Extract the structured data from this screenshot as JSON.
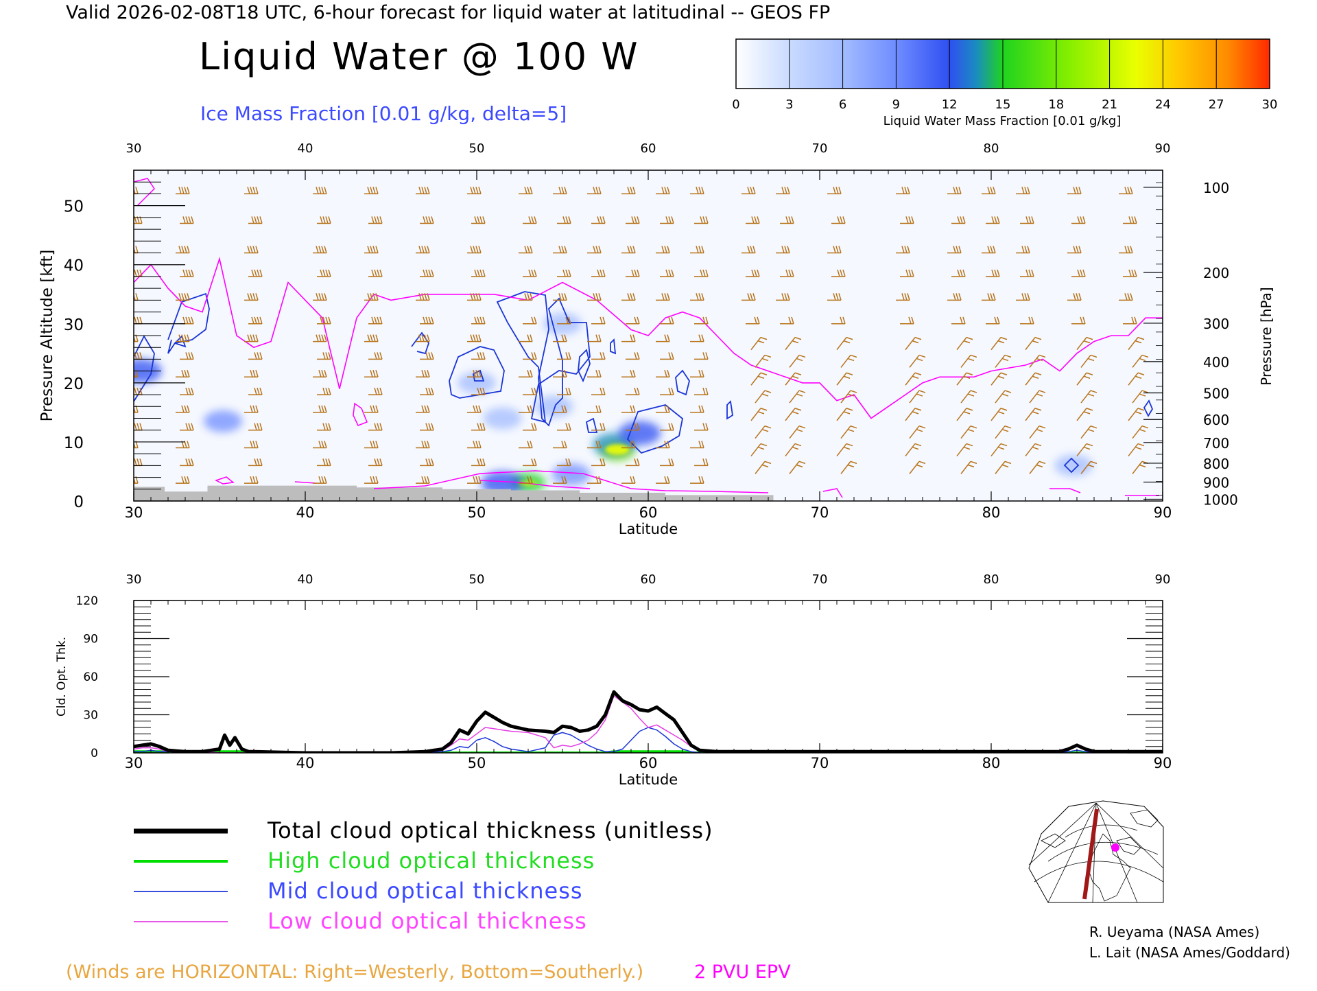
{
  "header": {
    "valid_line": "Valid 2026-02-08T18 UTC, 6-hour forecast for liquid water at latitudinal -- GEOS FP",
    "main_title": "Liquid Water @ 100 W",
    "subtitle": "Ice Mass Fraction [0.01 g/kg, delta=5]"
  },
  "colorbar": {
    "ticks": [
      "0",
      "3",
      "6",
      "9",
      "12",
      "15",
      "18",
      "21",
      "24",
      "27",
      "30"
    ],
    "label": "Liquid Water Mass Fraction [0.01 g/kg]",
    "colors": [
      "#f4f7ff",
      "#c7d8ff",
      "#a0b9ff",
      "#7d98ff",
      "#3f5cff",
      "#1d9ab4",
      "#1fd31f",
      "#90ee00",
      "#f2ff00",
      "#ffc800",
      "#ff8c00",
      "#ff2a00"
    ]
  },
  "colors": {
    "wind_barb": "#b8741a",
    "tropopause_2pvu": "#ff00ff",
    "ice_contour": "#1a34d6",
    "terrain": "#bdbdbd",
    "total": "#000000",
    "high": "#00dd00",
    "mid": "#1a34d6",
    "low": "#e43fe4"
  },
  "chart_data": [
    {
      "type": "heatmap",
      "title": "Liquid Water @ 100 W",
      "xlabel": "Latitude",
      "ylabel": "Pressure Altitude [kft]",
      "ylabel_right": "Pressure [hPa]",
      "xlim": [
        30,
        90
      ],
      "ylim": [
        0,
        56
      ],
      "x_ticks": [
        "30",
        "40",
        "50",
        "60",
        "70",
        "80",
        "90"
      ],
      "y_ticks": [
        "0",
        "10",
        "20",
        "30",
        "40",
        "50"
      ],
      "pressure_ticks": [
        {
          "label": "100",
          "kft": 53.1
        },
        {
          "label": "200",
          "kft": 38.7
        },
        {
          "label": "300",
          "kft": 30.1
        },
        {
          "label": "400",
          "kft": 23.6
        },
        {
          "label": "500",
          "kft": 18.3
        },
        {
          "label": "600",
          "kft": 13.8
        },
        {
          "label": "700",
          "kft": 9.9
        },
        {
          "label": "800",
          "kft": 6.4
        },
        {
          "label": "900",
          "kft": 3.2
        },
        {
          "label": "1000",
          "kft": 0.3
        }
      ],
      "tropopause_2pvu": [
        [
          30,
          37
        ],
        [
          31,
          40
        ],
        [
          32,
          36
        ],
        [
          33,
          33
        ],
        [
          34,
          32
        ],
        [
          35,
          41
        ],
        [
          36,
          28
        ],
        [
          37,
          26
        ],
        [
          38,
          27
        ],
        [
          39,
          37
        ],
        [
          40,
          34
        ],
        [
          41,
          31
        ],
        [
          42,
          19
        ],
        [
          43,
          31
        ],
        [
          44,
          35
        ],
        [
          45,
          34
        ],
        [
          47,
          35
        ],
        [
          49,
          35
        ],
        [
          51,
          35
        ],
        [
          53,
          34
        ],
        [
          55,
          37
        ],
        [
          57,
          34
        ],
        [
          59,
          29
        ],
        [
          60,
          28
        ],
        [
          61,
          31
        ],
        [
          62,
          32
        ],
        [
          63,
          31
        ],
        [
          64,
          28
        ],
        [
          65,
          25
        ],
        [
          66,
          23
        ],
        [
          67,
          22
        ],
        [
          68,
          21
        ],
        [
          69,
          20
        ],
        [
          70,
          20
        ],
        [
          71,
          17
        ],
        [
          72,
          18
        ],
        [
          73,
          14
        ],
        [
          74,
          16
        ],
        [
          75,
          18
        ],
        [
          76,
          20
        ],
        [
          77,
          21
        ],
        [
          78,
          21
        ],
        [
          79,
          21
        ],
        [
          80,
          22
        ],
        [
          82,
          23
        ],
        [
          83,
          24
        ],
        [
          84,
          22
        ],
        [
          85,
          25
        ],
        [
          86,
          27
        ],
        [
          87,
          28
        ],
        [
          88,
          28
        ],
        [
          89,
          31
        ],
        [
          90,
          31
        ]
      ],
      "liquid_water_features": [
        {
          "lat": 58.2,
          "kft": 8.5,
          "value": 18
        },
        {
          "lat": 58.0,
          "kft": 9.5,
          "value": 12
        },
        {
          "lat": 59.5,
          "kft": 11.5,
          "value": 9
        },
        {
          "lat": 53.0,
          "kft": 3.1,
          "value": 15
        },
        {
          "lat": 51.5,
          "kft": 3.0,
          "value": 10
        },
        {
          "lat": 55.5,
          "kft": 4.5,
          "value": 7
        },
        {
          "lat": 35.2,
          "kft": 13.5,
          "value": 7
        },
        {
          "lat": 30.4,
          "kft": 22,
          "value": 9
        },
        {
          "lat": 54.5,
          "kft": 16,
          "value": 4
        },
        {
          "lat": 51.5,
          "kft": 14,
          "value": 3
        },
        {
          "lat": 84.8,
          "kft": 6,
          "value": 3
        },
        {
          "lat": 55.0,
          "kft": 30,
          "value": 3
        },
        {
          "lat": 50.0,
          "kft": 20,
          "value": 3
        }
      ],
      "terrain_kft": [
        [
          30,
          2.4
        ],
        [
          31.8,
          2.4
        ],
        [
          31.8,
          1.6
        ],
        [
          34.3,
          1.6
        ],
        [
          34.3,
          2.6
        ],
        [
          43,
          2.6
        ],
        [
          43,
          2.3
        ],
        [
          48,
          2.3
        ],
        [
          48,
          2.0
        ],
        [
          52,
          2.0
        ],
        [
          52,
          1.8
        ],
        [
          56,
          1.8
        ],
        [
          56,
          1.4
        ],
        [
          61,
          1.4
        ],
        [
          61,
          1.0
        ],
        [
          67.3,
          1.0
        ],
        [
          67.3,
          0
        ]
      ]
    },
    {
      "type": "line",
      "xlabel": "Latitude",
      "ylabel": "Cld. Opt. Thk.",
      "xlim": [
        30,
        90
      ],
      "ylim": [
        0,
        120
      ],
      "x_ticks": [
        "30",
        "40",
        "50",
        "60",
        "70",
        "80",
        "90"
      ],
      "y_ticks": [
        "0",
        "30",
        "60",
        "90",
        "120"
      ],
      "x": [
        30,
        30.5,
        31,
        31.5,
        32,
        33,
        34,
        35,
        35.3,
        35.6,
        35.9,
        36.3,
        36.7,
        37,
        40,
        45,
        47,
        48,
        48.5,
        49,
        49.5,
        50,
        50.5,
        51,
        51.5,
        52,
        53,
        54,
        54.5,
        55,
        55.5,
        56,
        56.5,
        57,
        57.5,
        58,
        58.5,
        59,
        59.5,
        60,
        60.5,
        61,
        61.5,
        62,
        62.5,
        63,
        64,
        66,
        70,
        80,
        84,
        84.5,
        85,
        85.5,
        86,
        88,
        90
      ],
      "series": [
        {
          "name": "Total cloud optical thickness (unitless)",
          "values": [
            5,
            6,
            7,
            5,
            2,
            1,
            1,
            3,
            14,
            6,
            12,
            3,
            1,
            1,
            0,
            0,
            1,
            3,
            8,
            18,
            15,
            25,
            32,
            28,
            24,
            21,
            18,
            17,
            16,
            21,
            20,
            17,
            18,
            21,
            30,
            48,
            41,
            38,
            34,
            33,
            36,
            31,
            26,
            16,
            6,
            2,
            1,
            1,
            1,
            1,
            1,
            3,
            6,
            3,
            1,
            1,
            1
          ]
        },
        {
          "name": "High cloud optical thickness",
          "values": [
            1,
            1,
            1,
            1,
            1,
            1,
            1,
            1,
            1,
            1,
            1,
            1,
            1,
            1,
            0,
            0,
            0,
            0,
            0,
            0,
            0,
            0,
            0,
            0,
            0,
            0,
            0,
            0,
            0,
            0,
            0,
            0,
            0,
            0,
            0,
            1,
            1,
            1,
            1,
            1,
            1,
            1,
            1,
            1,
            0,
            0,
            0,
            0,
            0,
            0,
            0,
            0,
            0,
            0,
            0,
            0,
            0
          ]
        },
        {
          "name": "Mid cloud optical thickness",
          "values": [
            1,
            1,
            2,
            1,
            1,
            0,
            0,
            3,
            14,
            6,
            12,
            3,
            1,
            0,
            0,
            0,
            0,
            1,
            2,
            5,
            4,
            10,
            12,
            9,
            5,
            3,
            1,
            4,
            14,
            16,
            14,
            10,
            6,
            3,
            1,
            1,
            3,
            10,
            17,
            20,
            18,
            13,
            7,
            3,
            1,
            0,
            0,
            0,
            0,
            0,
            0,
            1,
            2,
            1,
            0,
            0,
            0
          ]
        },
        {
          "name": "Low cloud optical thickness",
          "values": [
            3,
            4,
            4,
            3,
            1,
            1,
            1,
            0,
            0,
            0,
            0,
            0,
            0,
            1,
            0,
            0,
            1,
            2,
            6,
            11,
            10,
            15,
            20,
            19,
            18,
            17,
            16,
            12,
            4,
            6,
            5,
            7,
            10,
            16,
            26,
            45,
            40,
            35,
            27,
            20,
            22,
            18,
            14,
            10,
            5,
            2,
            1,
            1,
            1,
            1,
            1,
            3,
            5,
            2,
            1,
            1,
            1
          ]
        }
      ]
    }
  ],
  "legend": {
    "items": [
      {
        "label": "Total cloud optical thickness (unitless)",
        "color": "#000000"
      },
      {
        "label": "High cloud optical thickness",
        "color": "#00dd00"
      },
      {
        "label": "Mid cloud optical thickness",
        "color": "#1a34d6"
      },
      {
        "label": "Low cloud optical thickness",
        "color": "#e43fe4"
      }
    ]
  },
  "footer": {
    "winds_note": "(Winds are HORIZONTAL: Right=Westerly, Bottom=Southerly.)",
    "pvu_label": "2 PVU EPV",
    "credit1": "R. Ueyama (NASA Ames)",
    "credit2": "L. Lait (NASA Ames/Goddard)"
  },
  "map_inset": {
    "icon": "polar-map-icon"
  }
}
